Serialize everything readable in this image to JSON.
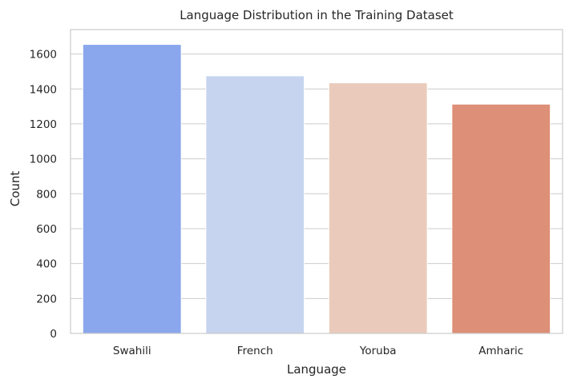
{
  "chart_data": {
    "type": "bar",
    "title": "Language Distribution in the Training Dataset",
    "xlabel": "Language",
    "ylabel": "Count",
    "categories": [
      "Swahili",
      "French",
      "Yoruba",
      "Amharic"
    ],
    "values": [
      1655,
      1475,
      1435,
      1313
    ],
    "colors": [
      "#8aa6ec",
      "#c6d4ef",
      "#eacbbb",
      "#dd8f77"
    ],
    "ylim": [
      0,
      1740
    ],
    "yticks": [
      0,
      200,
      400,
      600,
      800,
      1000,
      1200,
      1400,
      1600
    ],
    "grid": "horizontal",
    "legend": "none"
  }
}
